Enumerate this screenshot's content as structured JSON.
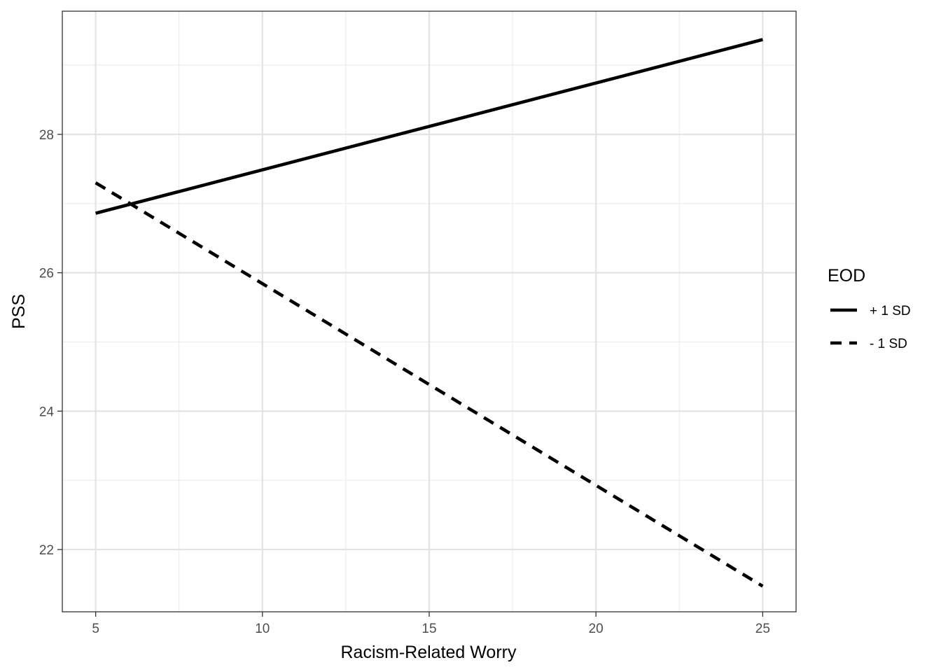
{
  "chart_data": {
    "type": "line",
    "title": "",
    "xlabel": "Racism-Related Worry",
    "ylabel": "PSS",
    "xlim": [
      4.0,
      26.0
    ],
    "ylim": [
      21.1,
      29.78
    ],
    "x_ticks": [
      5,
      10,
      15,
      20,
      25
    ],
    "y_ticks": [
      22,
      24,
      26,
      28
    ],
    "x_tick_labels": [
      "5",
      "10",
      "15",
      "20",
      "25"
    ],
    "y_tick_labels": [
      "22",
      "24",
      "26",
      "28"
    ],
    "grid": true,
    "legend_position": "right",
    "legend_title": "EOD",
    "series": [
      {
        "name": "+ 1 SD",
        "style": "solid",
        "color": "#000000",
        "x": [
          5,
          25
        ],
        "y": [
          26.86,
          29.37
        ]
      },
      {
        "name": "- 1 SD",
        "style": "dashed",
        "color": "#000000",
        "x": [
          5,
          25
        ],
        "y": [
          27.3,
          21.47
        ]
      }
    ]
  }
}
